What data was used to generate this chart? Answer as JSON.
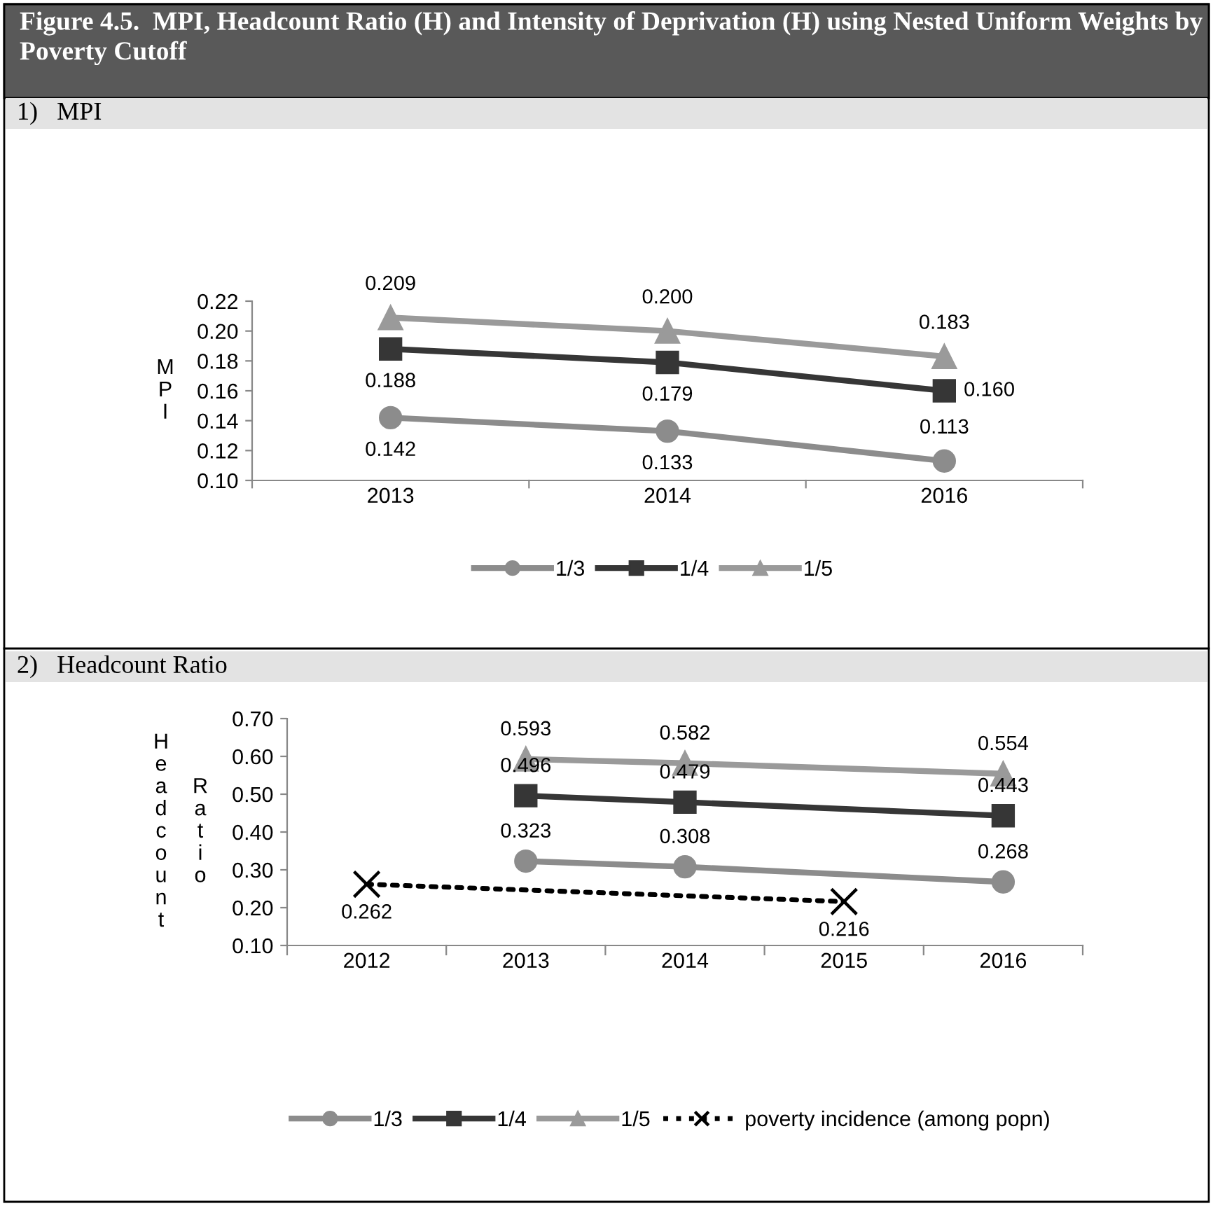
{
  "chart_data": [
    {
      "type": "line",
      "title": "Figure 4.5.  MPI, Headcount Ratio (H) and Intensity of Deprivation (H) using Nested Uniform Weights by Poverty Cutoff",
      "subtitle": "1)   MPI",
      "ylabel": "MPI",
      "categories": [
        "2013",
        "2014",
        "2016"
      ],
      "ylim": [
        0.1,
        0.22
      ],
      "yticks": [
        {
          "value": 0.1,
          "label": "0.10"
        },
        {
          "value": 0.12,
          "label": "0.12"
        },
        {
          "value": 0.14,
          "label": "0.14"
        },
        {
          "value": 0.16,
          "label": "0.16"
        },
        {
          "value": 0.18,
          "label": "0.18"
        },
        {
          "value": 0.2,
          "label": "0.20"
        },
        {
          "value": 0.22,
          "label": "0.22"
        }
      ],
      "legend": "bottom",
      "grid": false,
      "series": [
        {
          "name": "1/3",
          "color": "#8c8c8c",
          "marker": "circle",
          "line_style": "solid",
          "values": [
            0.142,
            0.133,
            0.113
          ],
          "value_labels": [
            "0.142",
            "0.133",
            "0.113"
          ]
        },
        {
          "name": "1/4",
          "color": "#363636",
          "marker": "square",
          "line_style": "solid",
          "values": [
            0.188,
            0.179,
            0.16
          ],
          "value_labels": [
            "0.188",
            "0.179",
            "0.160"
          ]
        },
        {
          "name": "1/5",
          "color": "#9a9a9a",
          "marker": "triangle",
          "line_style": "solid",
          "values": [
            0.209,
            0.2,
            0.183
          ],
          "value_labels": [
            "0.209",
            "0.200",
            "0.183"
          ]
        }
      ]
    },
    {
      "type": "line",
      "title": "2)   Headcount Ratio",
      "ylabel": "Headcount Ratio",
      "categories": [
        "2012",
        "2013",
        "2014",
        "2015",
        "2016"
      ],
      "ylim": [
        0.1,
        0.7
      ],
      "yticks": [
        {
          "value": 0.1,
          "label": "0.10"
        },
        {
          "value": 0.2,
          "label": "0.20"
        },
        {
          "value": 0.3,
          "label": "0.30"
        },
        {
          "value": 0.4,
          "label": "0.40"
        },
        {
          "value": 0.5,
          "label": "0.50"
        },
        {
          "value": 0.6,
          "label": "0.60"
        },
        {
          "value": 0.7,
          "label": "0.70"
        }
      ],
      "legend": "bottom",
      "grid": false,
      "series": [
        {
          "name": "1/3",
          "color": "#8c8c8c",
          "marker": "circle",
          "line_style": "solid",
          "values": [
            null,
            0.323,
            0.308,
            null,
            0.268
          ],
          "value_labels": [
            null,
            "0.323",
            "0.308",
            null,
            "0.268"
          ]
        },
        {
          "name": "1/4",
          "color": "#363636",
          "marker": "square",
          "line_style": "solid",
          "values": [
            null,
            0.496,
            0.479,
            null,
            0.443
          ],
          "value_labels": [
            null,
            "0.496",
            "0.479",
            null,
            "0.443"
          ]
        },
        {
          "name": "1/5",
          "color": "#9a9a9a",
          "marker": "triangle",
          "line_style": "solid",
          "values": [
            null,
            0.593,
            0.582,
            null,
            0.554
          ],
          "value_labels": [
            null,
            "0.593",
            "0.582",
            null,
            "0.554"
          ]
        },
        {
          "name": "poverty incidence (among popn)",
          "color": "#000000",
          "marker": "cross",
          "line_style": "dotted",
          "values": [
            0.262,
            null,
            null,
            0.216,
            null
          ],
          "value_labels": [
            "0.262",
            null,
            null,
            "0.216",
            null
          ]
        }
      ]
    }
  ]
}
